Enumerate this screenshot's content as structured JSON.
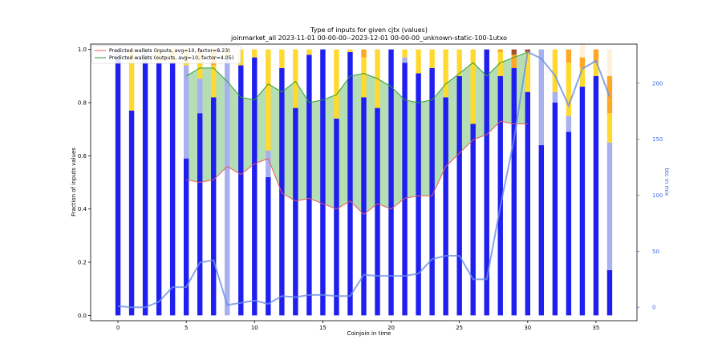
{
  "chart_data": {
    "type": "bar",
    "title_line1": "Type of inputs for given cjtx (values)",
    "title_line2": "joinmarket_all 2023-11-01 00-00-00--2023-12-01 00-00-00_unknown-static-100-1utxo",
    "xlabel": "Coinjoin in time",
    "ylabel": "Fraction of inputs values",
    "ylabel_right": "btc in mix",
    "xlim": [
      -2,
      38
    ],
    "ylim": [
      -0.02,
      1.02
    ],
    "ylim_right": [
      -12,
      235
    ],
    "x_ticks": [
      0,
      5,
      10,
      15,
      20,
      25,
      30,
      35
    ],
    "y_ticks": [
      0.0,
      0.2,
      0.4,
      0.6,
      0.8,
      1.0
    ],
    "y_ticks_right": [
      0,
      50,
      100,
      150,
      200
    ],
    "legend": {
      "placement": "top-left",
      "entries": [
        {
          "label": "Predicted wallets (inputs, avg=10, factor=8.23)",
          "color": "#e8585a"
        },
        {
          "label": "Predicted wallets (outputs, avg=10, factor=4.05)",
          "color": "#2ca02c"
        }
      ]
    },
    "x": [
      0,
      1,
      2,
      3,
      4,
      5,
      6,
      7,
      8,
      9,
      10,
      11,
      12,
      13,
      14,
      15,
      16,
      17,
      18,
      19,
      20,
      21,
      22,
      23,
      24,
      25,
      26,
      27,
      28,
      29,
      30,
      31,
      32,
      33,
      34,
      35,
      36
    ],
    "stack_colors": {
      "blue": "#1f1fef",
      "light_blue": "#a8b0f0",
      "yellow": "#ffd92f",
      "orange": "#ffa726",
      "brown": "#a0522d",
      "cream": "#fff0d8"
    },
    "series": [
      {
        "key": "blue",
        "values": [
          0.96,
          0.77,
          0.95,
          0.95,
          0.95,
          0.59,
          0.76,
          0.82,
          0.0,
          0.94,
          0.97,
          0.52,
          0.93,
          0.78,
          0.98,
          1.0,
          0.74,
          0.99,
          0.82,
          0.78,
          1.0,
          0.95,
          0.91,
          0.93,
          0.82,
          0.9,
          0.72,
          1.0,
          0.9,
          0.93,
          0.84,
          0.64,
          0.8,
          0.69,
          0.86,
          0.9,
          0.17
        ]
      },
      {
        "key": "light_blue",
        "values": [
          0.04,
          0.0,
          0.05,
          0.0,
          0.0,
          0.35,
          0.13,
          0.0,
          0.97,
          0.0,
          0.0,
          0.1,
          0.0,
          0.0,
          0.0,
          0.0,
          0.0,
          0.0,
          0.0,
          0.0,
          0.0,
          0.02,
          0.0,
          0.0,
          0.0,
          0.0,
          0.0,
          0.0,
          0.0,
          0.0,
          0.0,
          0.36,
          0.04,
          0.06,
          0.0,
          0.0,
          0.48
        ]
      },
      {
        "key": "yellow",
        "values": [
          0.0,
          0.23,
          0.0,
          0.05,
          0.05,
          0.06,
          0.08,
          0.12,
          0.03,
          0.06,
          0.03,
          0.38,
          0.07,
          0.22,
          0.02,
          0.0,
          0.26,
          0.01,
          0.15,
          0.22,
          0.0,
          0.03,
          0.09,
          0.07,
          0.18,
          0.1,
          0.28,
          0.0,
          0.09,
          0.0,
          0.15,
          0.0,
          0.16,
          0.2,
          0.07,
          0.05,
          0.11
        ]
      },
      {
        "key": "orange",
        "values": [
          0.0,
          0.0,
          0.0,
          0.0,
          0.0,
          0.0,
          0.02,
          0.06,
          0.0,
          0.0,
          0.0,
          0.0,
          0.0,
          0.0,
          0.0,
          0.0,
          0.0,
          0.0,
          0.03,
          0.0,
          0.0,
          0.0,
          0.0,
          0.0,
          0.0,
          0.0,
          0.0,
          0.0,
          0.01,
          0.05,
          0.0,
          0.0,
          0.0,
          0.05,
          0.04,
          0.05,
          0.14
        ]
      },
      {
        "key": "brown",
        "values": [
          0.0,
          0.0,
          0.0,
          0.0,
          0.0,
          0.0,
          0.01,
          0.0,
          0.0,
          0.0,
          0.0,
          0.0,
          0.0,
          0.0,
          0.0,
          0.0,
          0.0,
          0.0,
          0.0,
          0.0,
          0.0,
          0.0,
          0.0,
          0.0,
          0.0,
          0.0,
          0.0,
          0.0,
          0.0,
          0.02,
          0.01,
          0.0,
          0.0,
          0.0,
          0.0,
          0.0,
          0.0
        ]
      },
      {
        "key": "cream",
        "values": [
          0.0,
          0.0,
          0.0,
          0.0,
          0.0,
          0.0,
          0.0,
          0.0,
          0.0,
          0.0,
          0.0,
          0.0,
          0.0,
          0.0,
          0.0,
          0.0,
          0.0,
          0.0,
          0.0,
          0.0,
          0.0,
          0.0,
          0.0,
          0.0,
          0.0,
          0.0,
          0.0,
          0.0,
          0.0,
          0.0,
          0.0,
          0.0,
          0.0,
          0.0,
          0.05,
          0.0,
          0.1
        ]
      }
    ],
    "fill_band": {
      "x": [
        5,
        6,
        7,
        8,
        9,
        10,
        11,
        12,
        13,
        14,
        15,
        16,
        17,
        18,
        19,
        20,
        21,
        22,
        23,
        24,
        25,
        26,
        27,
        28,
        29,
        30
      ],
      "lower": [
        0.51,
        0.5,
        0.51,
        0.56,
        0.53,
        0.57,
        0.59,
        0.46,
        0.43,
        0.44,
        0.42,
        0.4,
        0.43,
        0.38,
        0.42,
        0.4,
        0.44,
        0.45,
        0.45,
        0.56,
        0.61,
        0.66,
        0.68,
        0.73,
        0.72,
        0.72
      ],
      "upper": [
        0.9,
        0.93,
        0.93,
        0.88,
        0.82,
        0.81,
        0.87,
        0.84,
        0.88,
        0.8,
        0.81,
        0.83,
        0.9,
        0.91,
        0.89,
        0.86,
        0.81,
        0.8,
        0.81,
        0.87,
        0.91,
        0.95,
        0.9,
        0.95,
        0.97,
        0.99
      ]
    },
    "btc_in_mix": [
      1,
      0,
      0,
      5,
      18,
      18,
      40,
      42,
      2,
      4,
      6,
      3,
      10,
      9,
      11,
      11,
      10,
      10,
      29,
      28,
      28,
      28,
      30,
      43,
      46,
      46,
      25,
      25,
      90,
      150,
      228,
      222,
      207,
      180,
      213,
      220,
      188
    ]
  }
}
